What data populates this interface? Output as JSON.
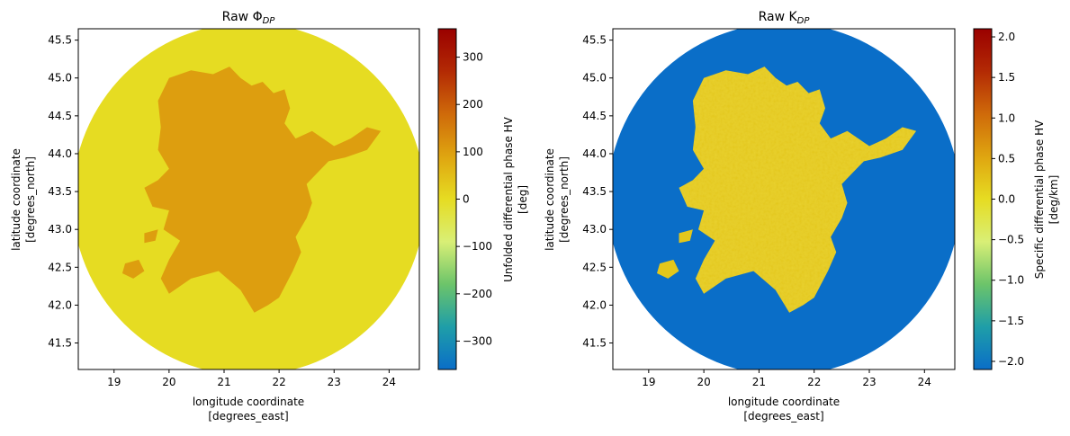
{
  "chart_data": [
    {
      "type": "heatmap",
      "title_main": "Raw Φ",
      "title_sub": "DP",
      "xlabel": [
        "longitude coordinate",
        "[degrees_east]"
      ],
      "ylabel": [
        "latitude coordinate",
        "[degrees_north]"
      ],
      "xlim": [
        18.35,
        24.55
      ],
      "ylim": [
        41.15,
        45.65
      ],
      "xticks": [
        19,
        20,
        21,
        22,
        23,
        24
      ],
      "yticks": [
        41.5,
        42.0,
        42.5,
        43.0,
        43.5,
        44.0,
        44.5,
        45.0,
        45.5
      ],
      "grid": false,
      "radar_center": [
        21.45,
        43.4
      ],
      "background_value": 0,
      "precip_value": 100,
      "colorbar": {
        "label": [
          "Unfolded differential phase HV",
          "[deg]"
        ],
        "range": [
          -360,
          360
        ],
        "ticks": [
          -300,
          -200,
          -100,
          0,
          100,
          200,
          300
        ]
      }
    },
    {
      "type": "heatmap",
      "title_main": "Raw K",
      "title_sub": "DP",
      "xlabel": [
        "longitude coordinate",
        "[degrees_east]"
      ],
      "ylabel": [
        "latitude coordinate",
        "[degrees_north]"
      ],
      "xlim": [
        18.35,
        24.55
      ],
      "ylim": [
        41.15,
        45.65
      ],
      "xticks": [
        19,
        20,
        21,
        22,
        23,
        24
      ],
      "yticks": [
        41.5,
        42.0,
        42.5,
        43.0,
        43.5,
        44.0,
        44.5,
        45.0,
        45.5
      ],
      "grid": false,
      "radar_center": [
        21.45,
        43.4
      ],
      "background_value": -2.1,
      "precip_value": 0.2,
      "colorbar": {
        "label": [
          "Specific differential phase HV",
          "[deg/km]"
        ],
        "range": [
          -2.1,
          2.1
        ],
        "ticks": [
          -2.0,
          -1.5,
          -1.0,
          -0.5,
          0.0,
          0.5,
          1.0,
          1.5,
          2.0
        ]
      }
    }
  ],
  "colormap": [
    "#0a6ec8",
    "#1f9ea8",
    "#6cc46a",
    "#d9ef76",
    "#e6dc22",
    "#dfa510",
    "#cf6a0a",
    "#b32a04",
    "#9a0000"
  ]
}
